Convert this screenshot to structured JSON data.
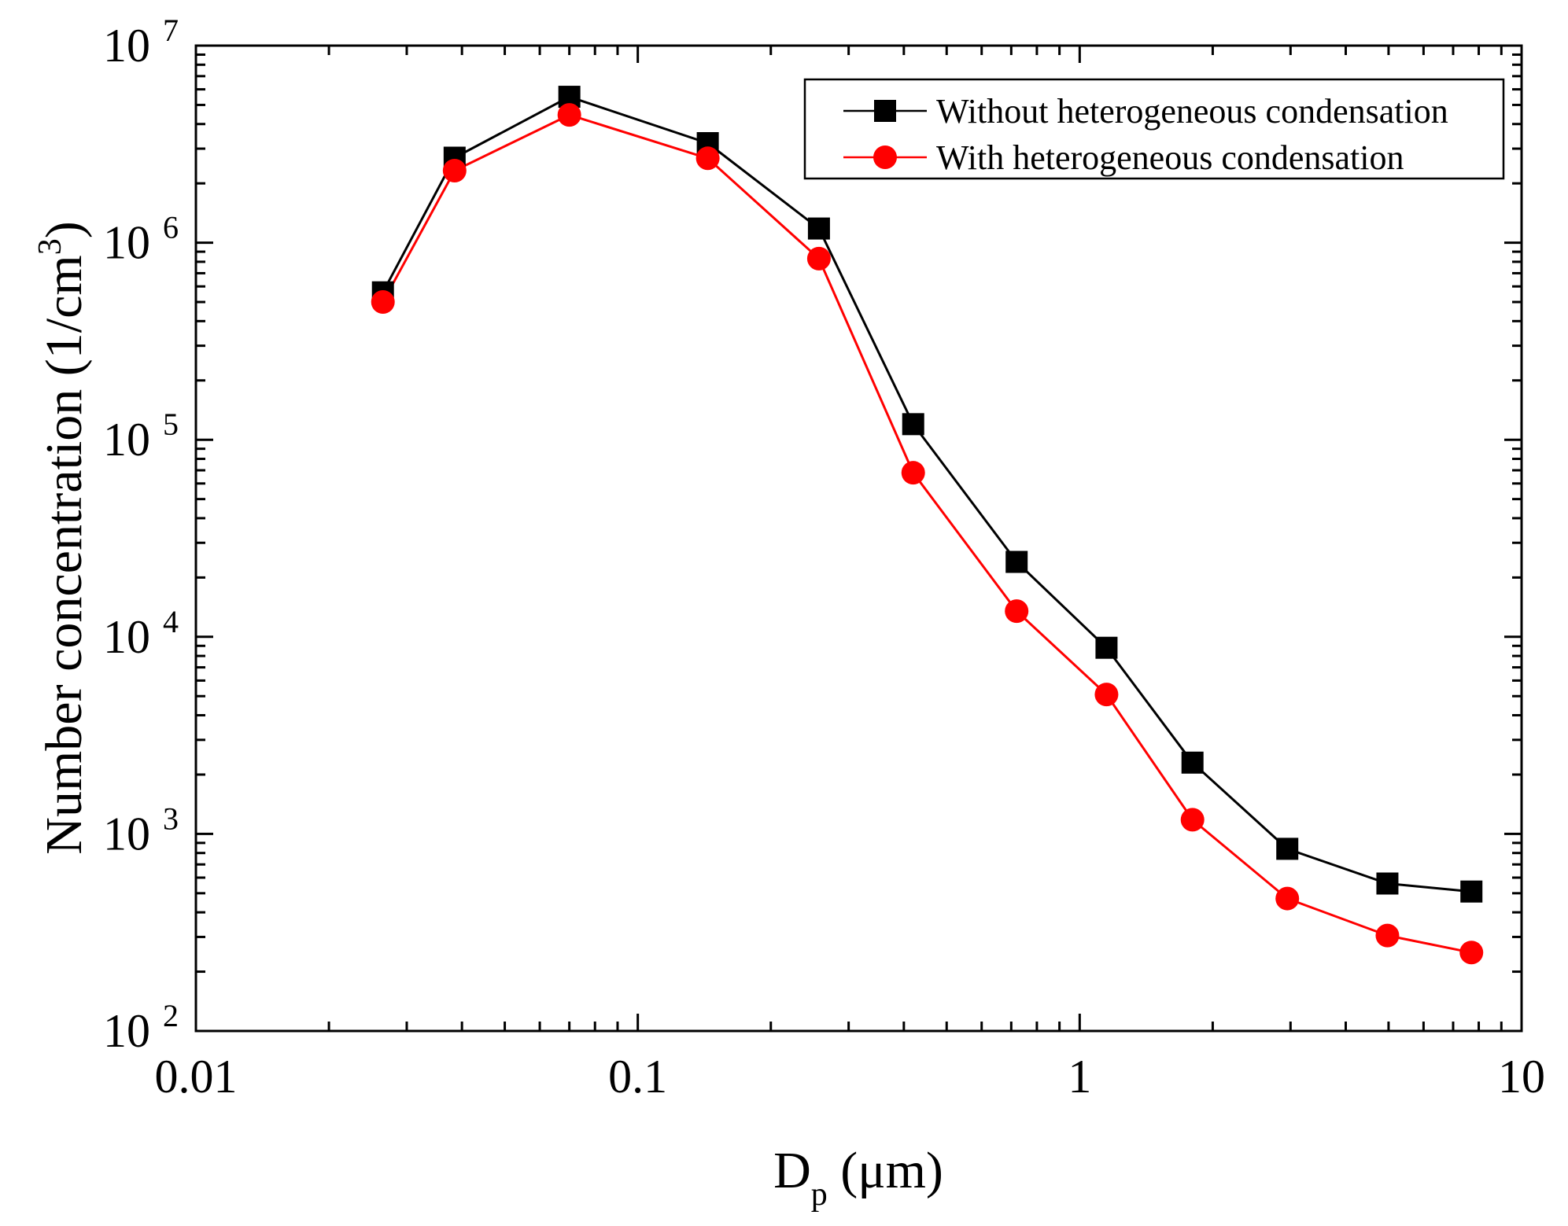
{
  "chart_data": {
    "type": "line",
    "x_scale": "log",
    "y_scale": "log",
    "xlim": [
      0.01,
      10
    ],
    "ylim": [
      100,
      10000000
    ],
    "xlabel": {
      "main": "D",
      "sub": "p",
      "unit": " (μm)"
    },
    "ylabel": {
      "main": "Number concentration (1/cm",
      "sup": "3",
      "close": ")"
    },
    "x_ticks": [
      {
        "value": 0.01,
        "label": "0.01"
      },
      {
        "value": 0.1,
        "label": "0.1"
      },
      {
        "value": 1,
        "label": "1"
      },
      {
        "value": 10,
        "label": "10"
      }
    ],
    "y_ticks": [
      {
        "value": 100,
        "base": "10",
        "exp": "2"
      },
      {
        "value": 1000,
        "base": "10",
        "exp": "3"
      },
      {
        "value": 10000,
        "base": "10",
        "exp": "4"
      },
      {
        "value": 100000,
        "base": "10",
        "exp": "5"
      },
      {
        "value": 1000000,
        "base": "10",
        "exp": "6"
      },
      {
        "value": 10000000,
        "base": "10",
        "exp": "7"
      }
    ],
    "legend_position": "top-right",
    "series": [
      {
        "name": "Without heterogeneous condensation",
        "marker": "square",
        "color": "#000000",
        "x": [
          0.0265,
          0.0385,
          0.07,
          0.144,
          0.257,
          0.42,
          0.72,
          1.15,
          1.8,
          2.95,
          4.97,
          7.7
        ],
        "y": [
          560000,
          2700000,
          5500000,
          3200000,
          1180000,
          120000,
          24000,
          8800,
          2300,
          840,
          560,
          510
        ]
      },
      {
        "name": "With heterogeneous condensation",
        "marker": "circle",
        "color": "#ff0000",
        "x": [
          0.0265,
          0.0385,
          0.07,
          0.144,
          0.257,
          0.42,
          0.72,
          1.15,
          1.8,
          2.95,
          4.97,
          7.7
        ],
        "y": [
          500000,
          2320000,
          4450000,
          2680000,
          830000,
          68000,
          13500,
          5100,
          1180,
          470,
          305,
          250
        ]
      }
    ]
  }
}
